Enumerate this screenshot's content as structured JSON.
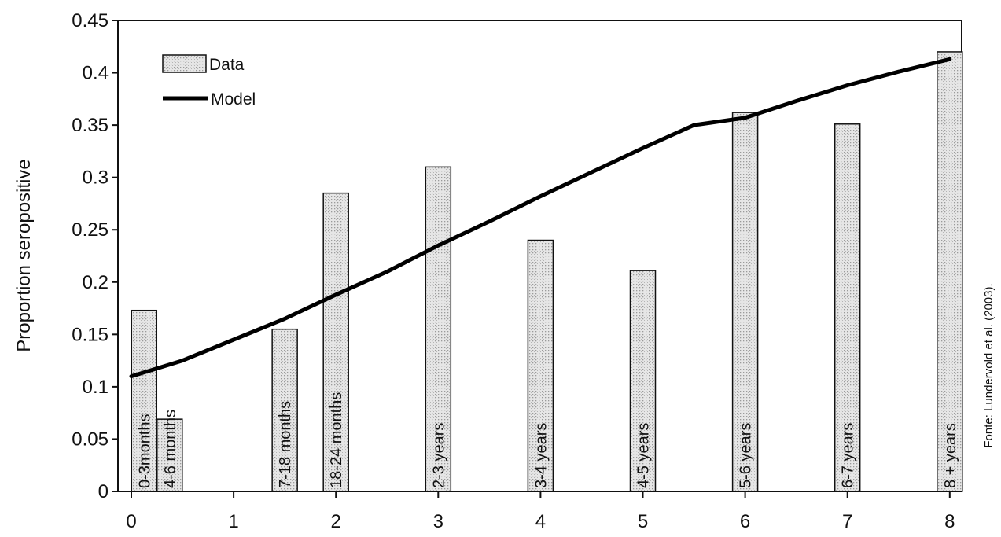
{
  "chart_data": {
    "type": "bar",
    "ylabel": "Proportion seropositive",
    "xlim": [
      0,
      8.2
    ],
    "ylim": [
      0,
      0.45
    ],
    "x_ticks": [
      0,
      1,
      2,
      3,
      4,
      5,
      6,
      7,
      8
    ],
    "x_tick_labels": [
      "0",
      "1",
      "2",
      "3",
      "4",
      "5",
      "6",
      "7",
      "8"
    ],
    "y_ticks": [
      0,
      0.05,
      0.1,
      0.15,
      0.2,
      0.25,
      0.3,
      0.35,
      0.4,
      0.45
    ],
    "y_tick_labels": [
      "0",
      "0.05",
      "0.1",
      "0.15",
      "0.2",
      "0.25",
      "0.3",
      "0.35",
      "0.4",
      "0.45"
    ],
    "grid": false,
    "legend_position": "top-left",
    "series": [
      {
        "name": "Data",
        "kind": "bar",
        "bars": [
          {
            "label": "0-3months",
            "x": 0.125,
            "value": 0.173
          },
          {
            "label": "4-6 months",
            "x": 0.375,
            "value": 0.069
          },
          {
            "label": "7-18 months",
            "x": 1.5,
            "value": 0.155
          },
          {
            "label": "18-24 months",
            "x": 2.0,
            "value": 0.285
          },
          {
            "label": "2-3 years",
            "x": 3.0,
            "value": 0.31
          },
          {
            "label": "3-4 years",
            "x": 4.0,
            "value": 0.24
          },
          {
            "label": "4-5 years",
            "x": 5.0,
            "value": 0.211
          },
          {
            "label": "5-6 years",
            "x": 6.0,
            "value": 0.362
          },
          {
            "label": "6-7 years",
            "x": 7.0,
            "value": 0.351
          },
          {
            "label": "8 + years",
            "x": 8.0,
            "value": 0.42
          }
        ]
      },
      {
        "name": "Model",
        "kind": "line",
        "points": [
          {
            "x": 0,
            "y": 0.11
          },
          {
            "x": 0.5,
            "y": 0.125
          },
          {
            "x": 1,
            "y": 0.145
          },
          {
            "x": 1.5,
            "y": 0.165
          },
          {
            "x": 2,
            "y": 0.188
          },
          {
            "x": 2.5,
            "y": 0.21
          },
          {
            "x": 3,
            "y": 0.235
          },
          {
            "x": 3.5,
            "y": 0.258
          },
          {
            "x": 4,
            "y": 0.282
          },
          {
            "x": 4.5,
            "y": 0.305
          },
          {
            "x": 5,
            "y": 0.328
          },
          {
            "x": 5.5,
            "y": 0.35
          },
          {
            "x": 6,
            "y": 0.357
          },
          {
            "x": 6.5,
            "y": 0.373
          },
          {
            "x": 7,
            "y": 0.388
          },
          {
            "x": 7.5,
            "y": 0.401
          },
          {
            "x": 8,
            "y": 0.413
          }
        ]
      }
    ],
    "source_note": "Fonte: Lundervold et al. (2003).",
    "colors": {
      "bar_fill": "#dcdcdc",
      "bar_stroke": "#111111",
      "line": "#000000"
    }
  }
}
